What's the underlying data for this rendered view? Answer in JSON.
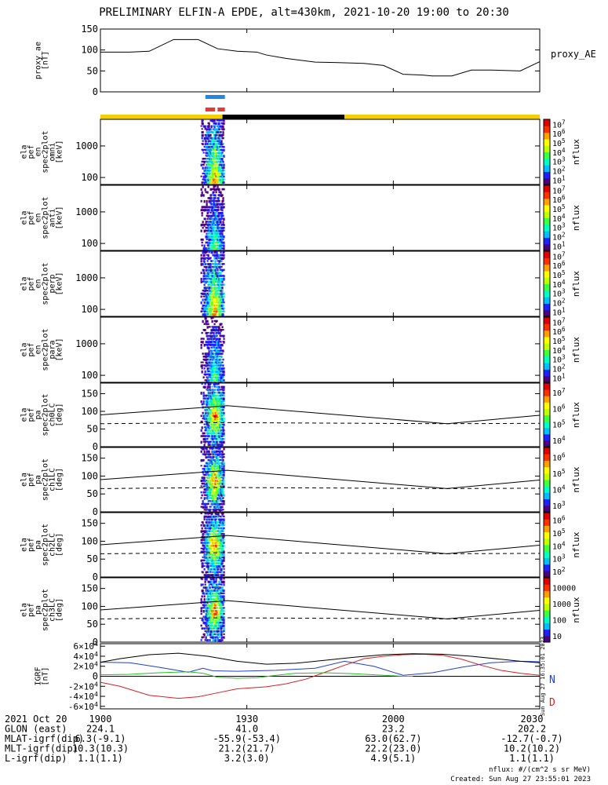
{
  "title": "PRELIMINARY ELFIN-A EPDE, alt=430km, 2021-10-20 19:00 to 20:30",
  "colors": {
    "axis": "#000000",
    "status_yellow": "#f5d000",
    "status_black": "#000000",
    "bar_blue": "#1e88e5",
    "bar_red": "#e53935",
    "grf_n": "#1f3fd6",
    "grf_d": "#d62020",
    "grf_e": "#000000",
    "grf_extra": "#22c022",
    "colorbar": [
      "#ffffff",
      "#4b0082",
      "#2020ff",
      "#00bfff",
      "#00ffc0",
      "#40ff40",
      "#c0ff00",
      "#ffff00",
      "#ffa000",
      "#ff3000",
      "#e00000"
    ]
  },
  "time": {
    "start_min": 0,
    "end_min": 90,
    "ticks": [
      0,
      30,
      60,
      90
    ],
    "tick_labels": [
      "1900",
      "1930",
      "2000",
      "2030"
    ]
  },
  "status_bar": [
    {
      "from": 0,
      "to": 25,
      "color": "yellow"
    },
    {
      "from": 25,
      "to": 50,
      "color": "black"
    },
    {
      "from": 50,
      "to": 90,
      "color": "yellow"
    }
  ],
  "activity_bars": {
    "blue": {
      "from": 21.5,
      "to": 25.5
    },
    "red": [
      {
        "from": 21.5,
        "to": 23.5
      },
      {
        "from": 24,
        "to": 25.5
      }
    ]
  },
  "chart_data": [
    {
      "type": "line",
      "ylabel": "proxy_ae\n[nT]",
      "legend": "proxy_AE",
      "ylim": [
        0,
        150
      ],
      "yticks": [
        0,
        50,
        100,
        150
      ],
      "series": [
        {
          "name": "proxy_AE",
          "x": [
            0,
            6,
            10,
            15,
            20,
            24,
            28,
            32,
            34,
            38,
            44,
            48,
            54,
            58,
            62,
            66,
            68,
            72,
            76,
            80,
            86,
            90
          ],
          "values": [
            95,
            95,
            97,
            125,
            125,
            103,
            97,
            95,
            88,
            80,
            71,
            70,
            68,
            63,
            42,
            40,
            38,
            38,
            52,
            52,
            50,
            72
          ]
        }
      ]
    },
    {
      "type": "heatmap",
      "ylabel": "ela\npef\nen\nspec2plot\nomni\n[keV]",
      "ylim_log": [
        60,
        7000
      ],
      "yticks": [
        100,
        1000
      ],
      "ytick_labels": [
        "100",
        "1000"
      ],
      "colorbar": {
        "label": "nflux",
        "ticks": [
          "10^1",
          "10^2",
          "10^3",
          "10^4",
          "10^5",
          "10^6",
          "10^7"
        ]
      }
    },
    {
      "type": "heatmap",
      "ylabel": "ela\npef\nen\nspec2plot\nanti\n[keV]",
      "ylim_log": [
        60,
        7000
      ],
      "yticks": [
        100,
        1000
      ],
      "ytick_labels": [
        "100",
        "1000"
      ],
      "colorbar": {
        "label": "nflux",
        "ticks": [
          "10^1",
          "10^2",
          "10^3",
          "10^4",
          "10^5",
          "10^6",
          "10^7"
        ]
      }
    },
    {
      "type": "heatmap",
      "ylabel": "ela\npef\nen\nspec2plot\nperp\n[keV]",
      "ylim_log": [
        60,
        7000
      ],
      "yticks": [
        100,
        1000
      ],
      "ytick_labels": [
        "100",
        "1000"
      ],
      "colorbar": {
        "label": "nflux",
        "ticks": [
          "10^1",
          "10^2",
          "10^3",
          "10^4",
          "10^5",
          "10^6",
          "10^7"
        ]
      }
    },
    {
      "type": "heatmap",
      "ylabel": "ela\npef\nen\nspec2plot\npara\n[keV]",
      "ylim_log": [
        60,
        7000
      ],
      "yticks": [
        100,
        1000
      ],
      "ytick_labels": [
        "100",
        "1000"
      ],
      "colorbar": {
        "label": "nflux",
        "ticks": [
          "10^1",
          "10^2",
          "10^3",
          "10^4",
          "10^5",
          "10^6",
          "10^7"
        ]
      }
    },
    {
      "type": "heatmap",
      "ylabel": "ela\npef\npa\nspec2plot\nch0LC\n[deg]",
      "ylim": [
        0,
        180
      ],
      "yticks": [
        0,
        50,
        100,
        150
      ],
      "colorbar": {
        "label": "nflux",
        "ticks": [
          "10^4",
          "10^5",
          "10^6",
          "10^7"
        ]
      },
      "lc_solid": {
        "x": [
          0,
          26,
          71,
          90
        ],
        "values": [
          90,
          116,
          65,
          89
        ]
      },
      "lc_dashed": {
        "x": [
          0,
          26,
          71,
          90
        ],
        "values": [
          65,
          68,
          65,
          66
        ]
      }
    },
    {
      "type": "heatmap",
      "ylabel": "ela\npef\npa\nspec2plot\nch1LC\n[deg]",
      "ylim": [
        0,
        180
      ],
      "yticks": [
        0,
        50,
        100,
        150
      ],
      "colorbar": {
        "label": "nflux",
        "ticks": [
          "10^3",
          "10^4",
          "10^5",
          "10^6"
        ]
      },
      "lc_solid": {
        "x": [
          0,
          26,
          71,
          90
        ],
        "values": [
          90,
          116,
          65,
          89
        ]
      },
      "lc_dashed": {
        "x": [
          0,
          26,
          71,
          90
        ],
        "values": [
          65,
          68,
          65,
          66
        ]
      }
    },
    {
      "type": "heatmap",
      "ylabel": "ela\npef\npa\nspec2plot\nch2LC\n[deg]",
      "ylim": [
        0,
        180
      ],
      "yticks": [
        0,
        50,
        100,
        150
      ],
      "colorbar": {
        "label": "nflux",
        "ticks": [
          "10^2",
          "10^3",
          "10^4",
          "10^5",
          "10^6"
        ]
      },
      "lc_solid": {
        "x": [
          0,
          26,
          71,
          90
        ],
        "values": [
          90,
          116,
          65,
          89
        ]
      },
      "lc_dashed": {
        "x": [
          0,
          26,
          71,
          90
        ],
        "values": [
          65,
          68,
          65,
          66
        ]
      }
    },
    {
      "type": "heatmap",
      "ylabel": "ela\npef\npa\nspec2plot\nch3LC\n[deg]",
      "ylim": [
        0,
        180
      ],
      "yticks": [
        0,
        50,
        100,
        150
      ],
      "colorbar": {
        "label": "nflux",
        "ticks": [
          "10",
          "100",
          "1000",
          "10000"
        ]
      },
      "lc_solid": {
        "x": [
          0,
          26,
          71,
          90
        ],
        "values": [
          90,
          116,
          65,
          89
        ]
      },
      "lc_dashed": {
        "x": [
          0,
          26,
          71,
          90
        ],
        "values": [
          65,
          68,
          65,
          66
        ]
      }
    },
    {
      "type": "line",
      "ylabel": "IGRF\n[nT]",
      "ylim": [
        -65000,
        65000
      ],
      "yticks": [
        -60000,
        -40000,
        -20000,
        0,
        20000,
        40000,
        60000
      ],
      "ytick_labels": [
        "-6×10^4",
        "-4×10^4",
        "-2×10^4",
        "0",
        "2×10^4",
        "4×10^4",
        "6×10^4"
      ],
      "legend": [
        "N",
        "D"
      ],
      "side_text": "Sun Aug 27 16:35:01 2023",
      "series": [
        {
          "name": "N",
          "color": "blue",
          "x": [
            0,
            6,
            12,
            18,
            21,
            23,
            28,
            36,
            44,
            50,
            56,
            62,
            68,
            74,
            80,
            86,
            90
          ],
          "values": [
            28000,
            27000,
            18000,
            8000,
            16000,
            11000,
            10000,
            12000,
            16000,
            30000,
            20000,
            2000,
            7000,
            18000,
            27000,
            30000,
            29000
          ]
        },
        {
          "name": "D",
          "color": "red",
          "x": [
            0,
            4,
            10,
            16,
            20,
            24,
            28,
            34,
            38,
            42,
            46,
            50,
            54,
            58,
            62,
            66,
            70,
            74,
            78,
            82,
            86,
            90
          ],
          "values": [
            -12000,
            -20000,
            -38000,
            -44000,
            -41000,
            -33000,
            -25000,
            -21000,
            -15000,
            -6000,
            8000,
            22000,
            35000,
            40000,
            43000,
            44000,
            42000,
            34000,
            22000,
            12000,
            6000,
            2000
          ]
        },
        {
          "name": "",
          "color": "black",
          "x": [
            0,
            4,
            10,
            16,
            22,
            28,
            34,
            40,
            46,
            52,
            58,
            64,
            70,
            76,
            82,
            86,
            90
          ],
          "values": [
            28000,
            35000,
            43000,
            46000,
            40000,
            30000,
            24000,
            26000,
            32000,
            38000,
            43000,
            45000,
            44000,
            40000,
            34000,
            30000,
            27000
          ]
        },
        {
          "name": "",
          "color": "green",
          "x": [
            0,
            6,
            12,
            18,
            21,
            24,
            28,
            32,
            36,
            40,
            46,
            52,
            58,
            62,
            64
          ],
          "values": [
            3000,
            4000,
            7000,
            9000,
            6000,
            -2000,
            -4000,
            -3000,
            2000,
            6000,
            7000,
            5000,
            2000,
            0,
            0
          ]
        }
      ]
    }
  ],
  "panel_labels": [
    "proxy_ae\n[nT]"
  ],
  "footer": {
    "rows": [
      {
        "label": "2021 Oct 20",
        "values": [
          "1900",
          "1930",
          "2000",
          "2030"
        ]
      },
      {
        "label": "GLON (east)",
        "values": [
          "224.1",
          "41.0",
          "23.2",
          "202.2"
        ]
      },
      {
        "label": "MLAT-igrf(dip)",
        "values": [
          "6.3(-9.1)",
          "-55.9(-53.4)",
          "63.0(62.7)",
          "-12.7(-0.7)"
        ]
      },
      {
        "label": "MLT-igrf(dip)",
        "values": [
          "10.3(10.3)",
          "21.2(21.7)",
          "22.2(23.0)",
          "10.2(10.2)"
        ]
      },
      {
        "label": "L-igrf(dip)",
        "values": [
          "1.1(1.1)",
          "3.2(3.0)",
          "4.9(5.1)",
          "1.1(1.1)"
        ]
      }
    ],
    "unit_note": "nflux: #/(cm^2 s sr MeV)",
    "created": "Created: Sun Aug 27 23:55:01 2023"
  }
}
